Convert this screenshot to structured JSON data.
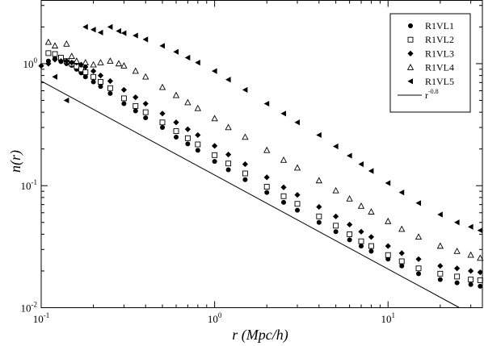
{
  "chart_data": {
    "type": "scatter",
    "xscale": "log",
    "yscale": "log",
    "xlim": [
      0.1,
      35
    ],
    "ylim": [
      0.01,
      3.3
    ],
    "xlabel": "r (Mpc/h)",
    "ylabel": "n(r)",
    "x_ticks": [
      {
        "base": "10",
        "exp": "-1",
        "value": 0.1
      },
      {
        "base": "10",
        "exp": "0",
        "value": 1
      },
      {
        "base": "10",
        "exp": "1",
        "value": 10
      }
    ],
    "y_ticks": [
      {
        "base": "10",
        "exp": "-2",
        "value": 0.01
      },
      {
        "base": "10",
        "exp": "-1",
        "value": 0.1
      },
      {
        "base": "10",
        "exp": "0",
        "value": 1
      }
    ],
    "legend_position": "top-right",
    "series": [
      {
        "name": "R1VL1",
        "marker": "filled-circle",
        "points": [
          [
            0.11,
            1.05
          ],
          [
            0.12,
            1.1
          ],
          [
            0.13,
            1.04
          ],
          [
            0.14,
            1.0
          ],
          [
            0.15,
            0.97
          ],
          [
            0.16,
            0.9
          ],
          [
            0.17,
            0.84
          ],
          [
            0.18,
            0.78
          ],
          [
            0.2,
            0.71
          ],
          [
            0.22,
            0.65
          ],
          [
            0.25,
            0.57
          ],
          [
            0.3,
            0.47
          ],
          [
            0.35,
            0.41
          ],
          [
            0.4,
            0.36
          ],
          [
            0.5,
            0.3
          ],
          [
            0.6,
            0.25
          ],
          [
            0.7,
            0.22
          ],
          [
            0.8,
            0.195
          ],
          [
            1.0,
            0.158
          ],
          [
            1.2,
            0.135
          ],
          [
            1.5,
            0.112
          ],
          [
            2.0,
            0.088
          ],
          [
            2.5,
            0.073
          ],
          [
            3.0,
            0.063
          ],
          [
            4.0,
            0.05
          ],
          [
            5.0,
            0.042
          ],
          [
            6.0,
            0.036
          ],
          [
            7.0,
            0.032
          ],
          [
            8.0,
            0.029
          ],
          [
            10.0,
            0.025
          ],
          [
            12.0,
            0.022
          ],
          [
            15.0,
            0.019
          ],
          [
            20.0,
            0.017
          ],
          [
            25.0,
            0.016
          ],
          [
            30.0,
            0.0155
          ],
          [
            34.0,
            0.015
          ]
        ]
      },
      {
        "name": "R1VL2",
        "marker": "open-square",
        "points": [
          [
            0.11,
            1.22
          ],
          [
            0.12,
            1.2
          ],
          [
            0.13,
            1.12
          ],
          [
            0.14,
            1.05
          ],
          [
            0.15,
            1.0
          ],
          [
            0.16,
            0.95
          ],
          [
            0.17,
            0.9
          ],
          [
            0.18,
            0.85
          ],
          [
            0.2,
            0.78
          ],
          [
            0.22,
            0.71
          ],
          [
            0.25,
            0.63
          ],
          [
            0.3,
            0.52
          ],
          [
            0.35,
            0.45
          ],
          [
            0.4,
            0.4
          ],
          [
            0.5,
            0.33
          ],
          [
            0.6,
            0.28
          ],
          [
            0.7,
            0.245
          ],
          [
            0.8,
            0.218
          ],
          [
            1.0,
            0.178
          ],
          [
            1.2,
            0.152
          ],
          [
            1.5,
            0.126
          ],
          [
            2.0,
            0.098
          ],
          [
            2.5,
            0.082
          ],
          [
            3.0,
            0.071
          ],
          [
            4.0,
            0.056
          ],
          [
            5.0,
            0.047
          ],
          [
            6.0,
            0.04
          ],
          [
            7.0,
            0.035
          ],
          [
            8.0,
            0.032
          ],
          [
            10.0,
            0.027
          ],
          [
            12.0,
            0.024
          ],
          [
            15.0,
            0.021
          ],
          [
            20.0,
            0.019
          ],
          [
            25.0,
            0.018
          ],
          [
            30.0,
            0.017
          ],
          [
            34.0,
            0.0168
          ]
        ]
      },
      {
        "name": "R1VL3",
        "marker": "filled-diamond",
        "points": [
          [
            0.1,
            0.96
          ],
          [
            0.11,
            1.0
          ],
          [
            0.12,
            1.08
          ],
          [
            0.13,
            1.05
          ],
          [
            0.14,
            1.05
          ],
          [
            0.15,
            1.02
          ],
          [
            0.16,
            1.02
          ],
          [
            0.17,
            0.98
          ],
          [
            0.18,
            0.94
          ],
          [
            0.2,
            0.87
          ],
          [
            0.22,
            0.8
          ],
          [
            0.25,
            0.72
          ],
          [
            0.3,
            0.61
          ],
          [
            0.35,
            0.53
          ],
          [
            0.4,
            0.47
          ],
          [
            0.5,
            0.39
          ],
          [
            0.6,
            0.33
          ],
          [
            0.7,
            0.29
          ],
          [
            0.8,
            0.26
          ],
          [
            1.0,
            0.212
          ],
          [
            1.2,
            0.18
          ],
          [
            1.5,
            0.15
          ],
          [
            2.0,
            0.117
          ],
          [
            2.5,
            0.097
          ],
          [
            3.0,
            0.084
          ],
          [
            4.0,
            0.067
          ],
          [
            5.0,
            0.056
          ],
          [
            6.0,
            0.048
          ],
          [
            7.0,
            0.042
          ],
          [
            8.0,
            0.038
          ],
          [
            10.0,
            0.032
          ],
          [
            12.0,
            0.028
          ],
          [
            15.0,
            0.025
          ],
          [
            20.0,
            0.022
          ],
          [
            25.0,
            0.021
          ],
          [
            30.0,
            0.02
          ],
          [
            34.0,
            0.0195
          ]
        ]
      },
      {
        "name": "R1VL4",
        "marker": "open-triangle-up",
        "points": [
          [
            0.11,
            1.5
          ],
          [
            0.12,
            1.4
          ],
          [
            0.14,
            1.45
          ],
          [
            0.15,
            1.15
          ],
          [
            0.16,
            1.05
          ],
          [
            0.18,
            1.02
          ],
          [
            0.2,
            0.98
          ],
          [
            0.22,
            1.02
          ],
          [
            0.25,
            1.05
          ],
          [
            0.28,
            1.0
          ],
          [
            0.3,
            0.96
          ],
          [
            0.35,
            0.87
          ],
          [
            0.4,
            0.78
          ],
          [
            0.5,
            0.64
          ],
          [
            0.6,
            0.55
          ],
          [
            0.7,
            0.48
          ],
          [
            0.8,
            0.43
          ],
          [
            1.0,
            0.355
          ],
          [
            1.2,
            0.3
          ],
          [
            1.5,
            0.25
          ],
          [
            2.0,
            0.195
          ],
          [
            2.5,
            0.162
          ],
          [
            3.0,
            0.14
          ],
          [
            4.0,
            0.11
          ],
          [
            5.0,
            0.091
          ],
          [
            6.0,
            0.078
          ],
          [
            7.0,
            0.068
          ],
          [
            8.0,
            0.061
          ],
          [
            10.0,
            0.051
          ],
          [
            12.0,
            0.044
          ],
          [
            15.0,
            0.038
          ],
          [
            20.0,
            0.032
          ],
          [
            25.0,
            0.029
          ],
          [
            30.0,
            0.027
          ],
          [
            34.0,
            0.0255
          ]
        ]
      },
      {
        "name": "R1VL5",
        "marker": "filled-triangle-left",
        "points": [
          [
            0.12,
            0.78
          ],
          [
            0.14,
            0.5
          ],
          [
            0.18,
            2.0
          ],
          [
            0.2,
            1.9
          ],
          [
            0.22,
            1.8
          ],
          [
            0.25,
            2.0
          ],
          [
            0.28,
            1.85
          ],
          [
            0.3,
            1.78
          ],
          [
            0.35,
            1.7
          ],
          [
            0.4,
            1.58
          ],
          [
            0.5,
            1.4
          ],
          [
            0.6,
            1.25
          ],
          [
            0.7,
            1.12
          ],
          [
            0.8,
            1.02
          ],
          [
            1.0,
            0.87
          ],
          [
            1.2,
            0.74
          ],
          [
            1.5,
            0.61
          ],
          [
            2.0,
            0.47
          ],
          [
            2.5,
            0.39
          ],
          [
            3.0,
            0.33
          ],
          [
            4.0,
            0.26
          ],
          [
            5.0,
            0.21
          ],
          [
            6.0,
            0.176
          ],
          [
            7.0,
            0.15
          ],
          [
            8.0,
            0.132
          ],
          [
            10.0,
            0.105
          ],
          [
            12.0,
            0.088
          ],
          [
            15.0,
            0.072
          ],
          [
            20.0,
            0.058
          ],
          [
            25.0,
            0.05
          ],
          [
            30.0,
            0.046
          ],
          [
            34.0,
            0.043
          ]
        ]
      }
    ],
    "reference_line": {
      "label_base": "r",
      "label_exp": "-0.8",
      "slope": -0.8,
      "points": [
        [
          0.1,
          0.72
        ],
        [
          25.8,
          0.01
        ]
      ]
    }
  }
}
